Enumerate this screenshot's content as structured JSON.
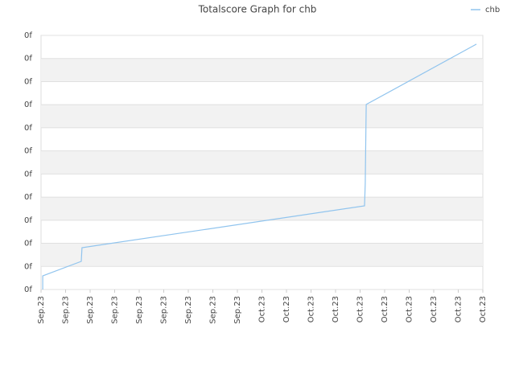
{
  "chart_data": {
    "type": "line",
    "title": "Totalscore Graph for chb",
    "x": [
      0.07,
      0.07,
      1.64,
      1.67,
      13.18,
      13.21,
      13.25,
      17.74
    ],
    "series": [
      {
        "name": "chb",
        "color": "#90c4ee",
        "values": [
          0,
          0.59,
          1.22,
          1.81,
          3.62,
          4.59,
          8.01,
          10.62
        ]
      }
    ],
    "xlim": [
      0,
      18
    ],
    "xticks": [
      {
        "value": 0,
        "label": "Sep.23"
      },
      {
        "value": 1,
        "label": "Sep.23"
      },
      {
        "value": 2,
        "label": "Sep.23"
      },
      {
        "value": 3,
        "label": "Sep.23"
      },
      {
        "value": 4,
        "label": "Sep.23"
      },
      {
        "value": 5,
        "label": "Sep.23"
      },
      {
        "value": 6,
        "label": "Sep.23"
      },
      {
        "value": 7,
        "label": "Sep.23"
      },
      {
        "value": 8,
        "label": "Sep.23"
      },
      {
        "value": 9,
        "label": "Oct.23"
      },
      {
        "value": 10,
        "label": "Oct.23"
      },
      {
        "value": 11,
        "label": "Oct.23"
      },
      {
        "value": 12,
        "label": "Oct.23"
      },
      {
        "value": 13,
        "label": "Oct.23"
      },
      {
        "value": 14,
        "label": "Oct.23"
      },
      {
        "value": 15,
        "label": "Oct.23"
      },
      {
        "value": 16,
        "label": "Oct.23"
      },
      {
        "value": 17,
        "label": "Oct.23"
      },
      {
        "value": 18,
        "label": "Oct.23"
      }
    ],
    "ylim": [
      0,
      11
    ],
    "yticks": [
      {
        "value": 0,
        "label": "0f"
      },
      {
        "value": 1,
        "label": "0f"
      },
      {
        "value": 2,
        "label": "0f"
      },
      {
        "value": 3,
        "label": "0f"
      },
      {
        "value": 4,
        "label": "0f"
      },
      {
        "value": 5,
        "label": "0f"
      },
      {
        "value": 6,
        "label": "0f"
      },
      {
        "value": 7,
        "label": "0f"
      },
      {
        "value": 8,
        "label": "0f"
      },
      {
        "value": 9,
        "label": "0f"
      },
      {
        "value": 10,
        "label": "0f"
      },
      {
        "value": 11,
        "label": "0f"
      }
    ],
    "grid": true,
    "legend": "top-right"
  }
}
